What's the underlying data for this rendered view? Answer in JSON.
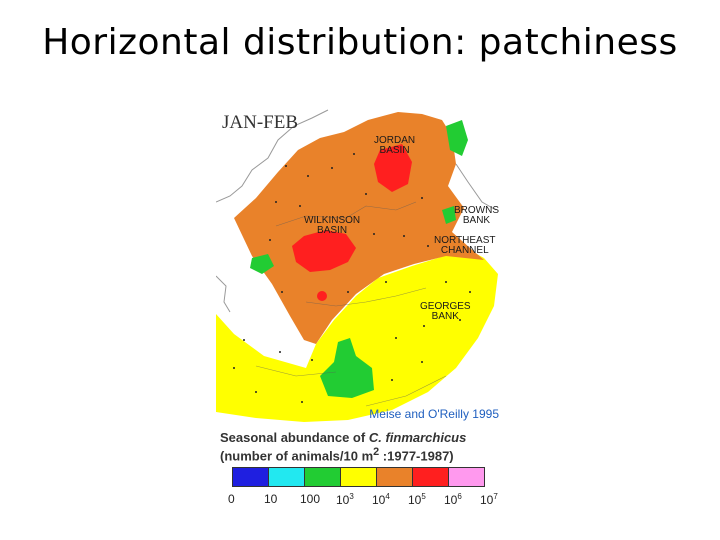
{
  "slide": {
    "title": "Horizontal distribution: patchiness"
  },
  "map": {
    "season": "JAN-FEB",
    "credit": "Meise and O'Reilly 1995",
    "labels": {
      "jordan_1": "JORDAN",
      "jordan_2": "BASIN",
      "wilkinson_1": "WILKINSON",
      "wilkinson_2": "BASIN",
      "browns_1": "BROWNS",
      "browns_2": "BANK",
      "northeast_1": "NORTHEAST",
      "northeast_2": "CHANNEL",
      "georges_1": "GEORGES",
      "georges_2": "BANK"
    },
    "colors": {
      "land": "#ffffff",
      "red": "#ff1f1f",
      "orange": "#e9822a",
      "yellow": "#ffff00",
      "green": "#22cc33",
      "coast": "#9a9a9a"
    }
  },
  "legend": {
    "title_prefix": "Seasonal abundance of ",
    "species": "C. finmarchicus",
    "units_prefix": "(number of animals/10 m",
    "units_exp": "2",
    "units_suffix": " :1977-1987)",
    "swatches": [
      "#1f1fe0",
      "#22e8f0",
      "#22cc33",
      "#ffff00",
      "#e9822a",
      "#ff1f1f",
      "#ff99ee"
    ],
    "ticks": [
      {
        "base": "0",
        "exp": ""
      },
      {
        "base": "10",
        "exp": ""
      },
      {
        "base": "100",
        "exp": ""
      },
      {
        "base": "10",
        "exp": "3"
      },
      {
        "base": "10",
        "exp": "4"
      },
      {
        "base": "10",
        "exp": "5"
      },
      {
        "base": "10",
        "exp": "6"
      },
      {
        "base": "10",
        "exp": "7"
      }
    ]
  }
}
